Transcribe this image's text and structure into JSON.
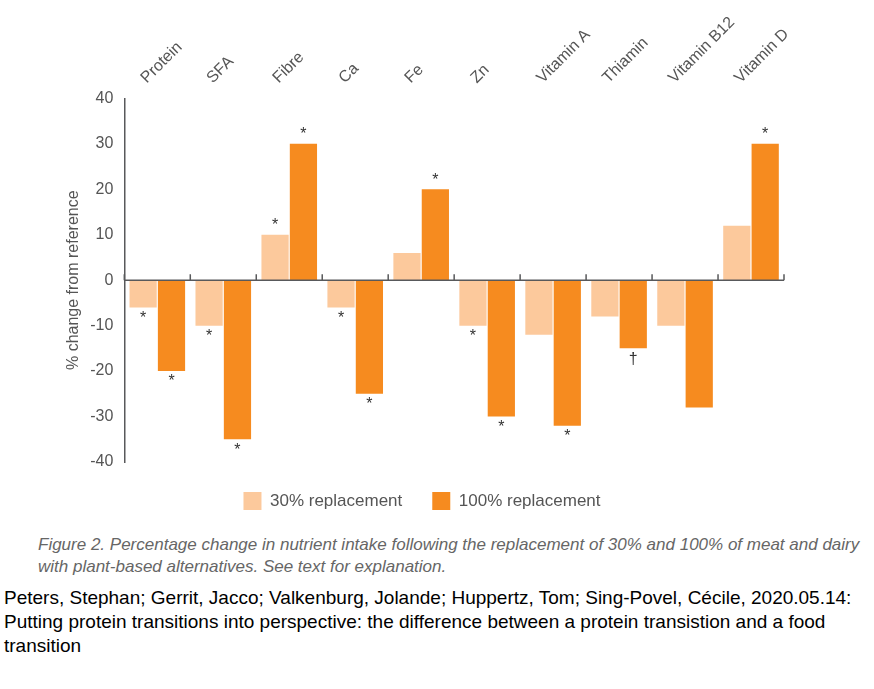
{
  "chart_data": {
    "type": "bar",
    "caption": "Figure 2. Percentage change in nutrient intake following the replacement of 30% and 100% of meat and dairy with plant-based alternatives. See text for explanation.",
    "source": "Peters, Stephan; Gerrit, Jacco; Valkenburg, Jolande; Huppertz, Tom; Sing-Povel, Cécile, 2020.05.14: Putting protein transitions into perspective: the difference between a protein transistion and a food transition",
    "y_label": "% change from reference",
    "categories": [
      "Protein",
      "SFA",
      "Fibre",
      "Ca",
      "Fe",
      "Zn",
      "Vitamin A",
      "Thiamin",
      "Vitamin B12",
      "Vitamin D"
    ],
    "series": [
      {
        "name": "30% replacement",
        "color": "#fcc99c",
        "values": [
          -6,
          -10,
          10,
          -6,
          6,
          -10,
          -12,
          -8,
          -10,
          12
        ],
        "annotations": [
          "*",
          "*",
          "*",
          "*",
          null,
          "*",
          null,
          null,
          null,
          null
        ]
      },
      {
        "name": "100% replacement",
        "color": "#f68b1f",
        "values": [
          -20,
          -35,
          30,
          -25,
          20,
          -30,
          -32,
          -15,
          -28,
          30
        ],
        "annotations": [
          "*",
          "*",
          "*",
          "*",
          "*",
          "*",
          "*",
          "†",
          null,
          "*"
        ]
      }
    ],
    "ylim": [
      -40,
      40
    ],
    "yticks": [
      -40,
      -30,
      -20,
      -10,
      0,
      10,
      20,
      30,
      40
    ],
    "grid": false,
    "legend": "bottom"
  }
}
